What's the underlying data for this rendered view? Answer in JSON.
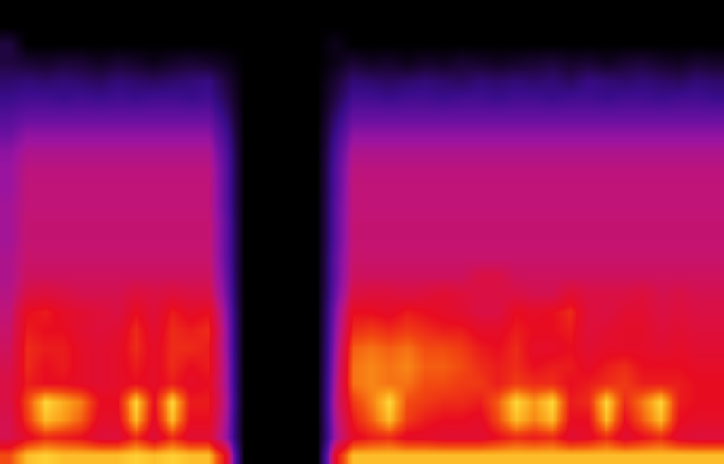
{
  "chart_data": {
    "type": "heatmap",
    "tick_labels": false,
    "grid": false,
    "zlim": [
      0,
      100
    ],
    "cells": [
      [
        0,
        0,
        0,
        0,
        0,
        0,
        0,
        0,
        0,
        0,
        0,
        0,
        0,
        0,
        0,
        0,
        0,
        0,
        0,
        0,
        0,
        0,
        0,
        0,
        0,
        0,
        0,
        0,
        0,
        0,
        0,
        0,
        0,
        0,
        0,
        0,
        0,
        0,
        0,
        0
      ],
      [
        0,
        0,
        0,
        0,
        0,
        0,
        0,
        0,
        0,
        0,
        0,
        0,
        0,
        0,
        0,
        0,
        0,
        0,
        0,
        0,
        0,
        0,
        0,
        0,
        0,
        0,
        0,
        0,
        0,
        0,
        0,
        0,
        0,
        0,
        0,
        0,
        0,
        0,
        0,
        0
      ],
      [
        15,
        0,
        0,
        0,
        0,
        0,
        0,
        0,
        0,
        0,
        0,
        0,
        0,
        0,
        0,
        0,
        0,
        0,
        6,
        0,
        0,
        0,
        0,
        0,
        0,
        0,
        0,
        0,
        0,
        0,
        0,
        0,
        0,
        0,
        0,
        0,
        0,
        0,
        0,
        0
      ],
      [
        15,
        12,
        10,
        13,
        12,
        8,
        12,
        10,
        6,
        10,
        12,
        10,
        6,
        0,
        0,
        0,
        0,
        0,
        5,
        12,
        8,
        10,
        6,
        10,
        8,
        12,
        10,
        8,
        10,
        12,
        14,
        10,
        12,
        8,
        12,
        14,
        10,
        8,
        12,
        10
      ],
      [
        22,
        24,
        22,
        24,
        22,
        20,
        24,
        22,
        20,
        22,
        24,
        26,
        14,
        0,
        0,
        0,
        0,
        0,
        12,
        24,
        22,
        20,
        22,
        24,
        22,
        20,
        24,
        22,
        24,
        22,
        24,
        20,
        26,
        24,
        22,
        24,
        22,
        20,
        24,
        22
      ],
      [
        28,
        30,
        30,
        28,
        30,
        28,
        30,
        28,
        30,
        30,
        28,
        30,
        18,
        0,
        0,
        0,
        0,
        0,
        16,
        30,
        30,
        28,
        30,
        30,
        28,
        30,
        30,
        28,
        30,
        30,
        28,
        30,
        30,
        28,
        30,
        30,
        28,
        30,
        30,
        28
      ],
      [
        34,
        38,
        38,
        38,
        38,
        38,
        38,
        38,
        38,
        38,
        38,
        38,
        24,
        0,
        0,
        0,
        0,
        0,
        22,
        38,
        38,
        38,
        38,
        38,
        38,
        38,
        38,
        38,
        38,
        38,
        38,
        38,
        38,
        38,
        38,
        38,
        38,
        38,
        38,
        38
      ],
      [
        40,
        46,
        46,
        46,
        46,
        46,
        46,
        46,
        46,
        46,
        46,
        46,
        30,
        0,
        0,
        0,
        0,
        0,
        28,
        46,
        46,
        46,
        46,
        46,
        46,
        46,
        46,
        46,
        46,
        46,
        46,
        46,
        46,
        46,
        46,
        46,
        46,
        46,
        46,
        46
      ],
      [
        46,
        52,
        52,
        52,
        52,
        52,
        52,
        52,
        52,
        52,
        52,
        52,
        34,
        0,
        0,
        0,
        0,
        0,
        32,
        52,
        52,
        52,
        52,
        52,
        52,
        52,
        52,
        52,
        52,
        52,
        52,
        52,
        52,
        52,
        52,
        52,
        52,
        52,
        52,
        52
      ],
      [
        48,
        55,
        55,
        55,
        55,
        55,
        55,
        55,
        55,
        55,
        55,
        55,
        36,
        0,
        0,
        0,
        0,
        0,
        34,
        55,
        55,
        55,
        55,
        55,
        55,
        55,
        55,
        55,
        55,
        55,
        55,
        55,
        55,
        55,
        55,
        55,
        55,
        55,
        55,
        55
      ],
      [
        48,
        56,
        56,
        56,
        56,
        56,
        56,
        56,
        56,
        56,
        56,
        56,
        36,
        0,
        0,
        0,
        0,
        0,
        34,
        56,
        56,
        56,
        56,
        56,
        56,
        56,
        56,
        56,
        56,
        56,
        56,
        56,
        56,
        56,
        56,
        56,
        56,
        56,
        56,
        56
      ],
      [
        50,
        56,
        56,
        56,
        56,
        56,
        56,
        56,
        56,
        56,
        56,
        56,
        36,
        0,
        0,
        0,
        0,
        0,
        36,
        56,
        56,
        56,
        56,
        56,
        56,
        56,
        56,
        56,
        56,
        56,
        56,
        56,
        56,
        56,
        56,
        56,
        56,
        56,
        56,
        56
      ],
      [
        50,
        57,
        57,
        57,
        57,
        57,
        57,
        57,
        57,
        57,
        57,
        57,
        38,
        0,
        0,
        0,
        0,
        0,
        36,
        57,
        57,
        57,
        57,
        57,
        57,
        57,
        57,
        57,
        57,
        57,
        57,
        57,
        57,
        57,
        57,
        57,
        57,
        57,
        57,
        57
      ],
      [
        50,
        57,
        57,
        57,
        57,
        57,
        57,
        57,
        57,
        57,
        57,
        57,
        38,
        0,
        0,
        0,
        0,
        0,
        36,
        57,
        57,
        57,
        57,
        57,
        57,
        57,
        57,
        57,
        57,
        57,
        57,
        57,
        57,
        57,
        57,
        57,
        57,
        57,
        57,
        57
      ],
      [
        52,
        58,
        58,
        58,
        58,
        58,
        58,
        58,
        58,
        58,
        58,
        58,
        38,
        0,
        0,
        0,
        0,
        0,
        38,
        58,
        58,
        58,
        58,
        58,
        58,
        58,
        58,
        58,
        58,
        58,
        58,
        58,
        58,
        58,
        58,
        58,
        58,
        58,
        58,
        58
      ],
      [
        52,
        60,
        60,
        60,
        60,
        60,
        60,
        60,
        60,
        60,
        60,
        60,
        40,
        0,
        0,
        0,
        0,
        0,
        38,
        60,
        60,
        60,
        60,
        60,
        60,
        60,
        64,
        64,
        60,
        60,
        60,
        60,
        60,
        60,
        60,
        60,
        60,
        60,
        60,
        60
      ],
      [
        54,
        64,
        66,
        64,
        62,
        62,
        62,
        66,
        64,
        66,
        64,
        64,
        42,
        0,
        0,
        0,
        0,
        0,
        40,
        64,
        66,
        66,
        64,
        66,
        68,
        66,
        64,
        64,
        64,
        62,
        62,
        68,
        64,
        64,
        64,
        66,
        62,
        64,
        62,
        62
      ],
      [
        56,
        72,
        74,
        70,
        68,
        66,
        64,
        72,
        66,
        74,
        70,
        72,
        46,
        0,
        0,
        0,
        0,
        0,
        44,
        72,
        72,
        70,
        74,
        72,
        70,
        68,
        64,
        64,
        72,
        70,
        72,
        76,
        66,
        64,
        68,
        68,
        64,
        66,
        64,
        64
      ],
      [
        58,
        74,
        72,
        72,
        68,
        66,
        68,
        76,
        68,
        76,
        74,
        76,
        48,
        0,
        0,
        0,
        0,
        0,
        46,
        76,
        78,
        76,
        78,
        76,
        74,
        74,
        70,
        70,
        74,
        72,
        72,
        74,
        66,
        68,
        70,
        70,
        66,
        68,
        66,
        66
      ],
      [
        60,
        76,
        74,
        74,
        70,
        68,
        70,
        76,
        70,
        76,
        76,
        74,
        48,
        0,
        0,
        0,
        0,
        0,
        48,
        82,
        84,
        82,
        84,
        80,
        80,
        78,
        74,
        72,
        76,
        70,
        70,
        72,
        68,
        70,
        70,
        70,
        68,
        70,
        68,
        68
      ],
      [
        62,
        76,
        72,
        74,
        70,
        68,
        70,
        74,
        70,
        76,
        72,
        74,
        50,
        0,
        0,
        0,
        0,
        0,
        50,
        84,
        86,
        84,
        86,
        82,
        82,
        80,
        76,
        74,
        76,
        72,
        74,
        74,
        70,
        74,
        76,
        72,
        72,
        72,
        70,
        70
      ],
      [
        64,
        74,
        72,
        72,
        70,
        68,
        70,
        72,
        70,
        74,
        70,
        72,
        50,
        0,
        0,
        0,
        0,
        0,
        52,
        84,
        86,
        84,
        84,
        80,
        80,
        78,
        78,
        74,
        78,
        76,
        76,
        72,
        74,
        76,
        78,
        74,
        74,
        74,
        72,
        72
      ],
      [
        64,
        80,
        95,
        90,
        85,
        72,
        72,
        95,
        72,
        95,
        74,
        74,
        52,
        0,
        0,
        0,
        0,
        0,
        54,
        78,
        85,
        95,
        80,
        78,
        76,
        76,
        74,
        82,
        95,
        88,
        95,
        74,
        76,
        95,
        76,
        85,
        95,
        74,
        72,
        72
      ],
      [
        62,
        78,
        92,
        88,
        82,
        70,
        70,
        92,
        70,
        92,
        72,
        72,
        50,
        0,
        0,
        0,
        0,
        0,
        52,
        74,
        82,
        92,
        78,
        74,
        72,
        72,
        70,
        80,
        92,
        86,
        92,
        72,
        72,
        92,
        72,
        82,
        92,
        72,
        70,
        70
      ],
      [
        62,
        70,
        76,
        74,
        72,
        66,
        66,
        76,
        66,
        76,
        68,
        68,
        48,
        0,
        0,
        0,
        0,
        0,
        50,
        70,
        74,
        76,
        70,
        70,
        68,
        68,
        68,
        72,
        76,
        74,
        76,
        68,
        70,
        76,
        68,
        72,
        76,
        68,
        66,
        66
      ],
      [
        80,
        92,
        94,
        92,
        92,
        92,
        92,
        94,
        92,
        94,
        92,
        92,
        70,
        0,
        0,
        0,
        0,
        0,
        70,
        92,
        92,
        92,
        92,
        92,
        92,
        92,
        92,
        92,
        92,
        92,
        92,
        92,
        92,
        92,
        92,
        92,
        92,
        92,
        92,
        92
      ]
    ]
  }
}
